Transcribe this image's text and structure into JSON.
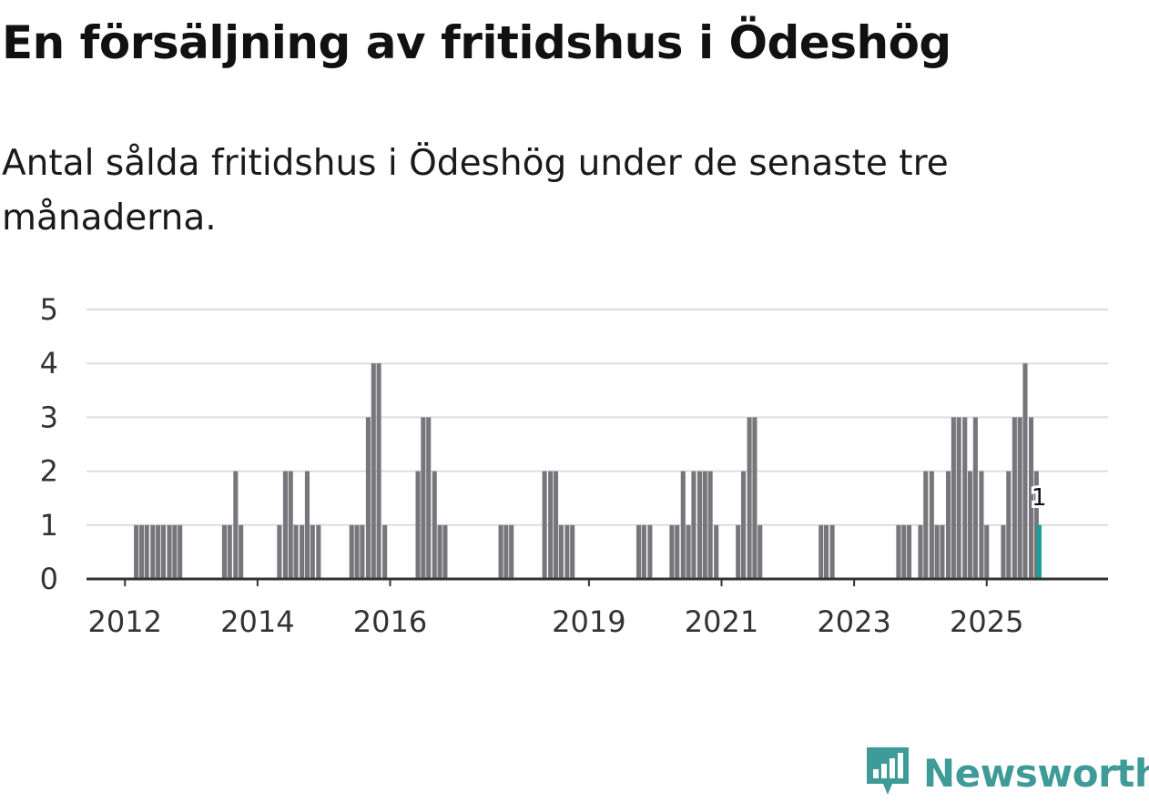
{
  "title": "En försäljning av fritidshus i Ödeshög",
  "subtitle": "Antal sålda fritidshus i Ödeshög under de senaste tre månaderna.",
  "brand": {
    "name": "Newsworthy",
    "icon": "newsworthy-logo-icon",
    "color": "#3e9b98"
  },
  "colors": {
    "bar": "#77767b",
    "highlight": "#12a39b",
    "grid": "#dddddd",
    "axis": "#333333"
  },
  "chart_data": {
    "type": "bar",
    "title": "En försäljning av fritidshus i Ödeshög",
    "subtitle": "Antal sålda fritidshus i Ödeshög under de senaste tre månaderna.",
    "xlabel": "",
    "ylabel": "",
    "ylim": [
      0,
      5
    ],
    "yticks": [
      0,
      1,
      2,
      3,
      4,
      5
    ],
    "xlim": [
      2011.42,
      2026.83
    ],
    "xticks": [
      2012,
      2014,
      2016,
      2019,
      2021,
      2023,
      2025
    ],
    "grid": true,
    "bar_width_years": 0.07,
    "highlight": {
      "x": 2025.79,
      "value": 1,
      "label": "1"
    },
    "x": [
      2012.17,
      2012.25,
      2012.33,
      2012.42,
      2012.5,
      2012.58,
      2012.67,
      2012.75,
      2012.83,
      2013.5,
      2013.58,
      2013.67,
      2013.75,
      2014.33,
      2014.42,
      2014.5,
      2014.58,
      2014.67,
      2014.75,
      2014.83,
      2014.92,
      2015.42,
      2015.5,
      2015.58,
      2015.67,
      2015.75,
      2015.83,
      2015.92,
      2016.42,
      2016.5,
      2016.58,
      2016.67,
      2016.75,
      2016.83,
      2017.67,
      2017.75,
      2017.83,
      2018.33,
      2018.42,
      2018.5,
      2018.58,
      2018.67,
      2018.75,
      2019.75,
      2019.83,
      2019.92,
      2020.25,
      2020.33,
      2020.42,
      2020.5,
      2020.58,
      2020.67,
      2020.75,
      2020.83,
      2020.92,
      2021.25,
      2021.33,
      2021.42,
      2021.5,
      2021.58,
      2022.5,
      2022.58,
      2022.67,
      2023.67,
      2023.75,
      2023.83,
      2024.0,
      2024.08,
      2024.17,
      2024.25,
      2024.33,
      2024.42,
      2024.5,
      2024.58,
      2024.67,
      2024.75,
      2024.83,
      2024.92,
      2025.0,
      2025.25,
      2025.33,
      2025.42,
      2025.5,
      2025.58,
      2025.67,
      2025.75,
      2025.79
    ],
    "values": [
      1,
      1,
      1,
      1,
      1,
      1,
      1,
      1,
      1,
      1,
      1,
      2,
      1,
      1,
      2,
      2,
      1,
      1,
      2,
      1,
      1,
      1,
      1,
      1,
      3,
      4,
      4,
      1,
      2,
      3,
      3,
      2,
      1,
      1,
      1,
      1,
      1,
      2,
      2,
      2,
      1,
      1,
      1,
      1,
      1,
      1,
      1,
      1,
      2,
      1,
      2,
      2,
      2,
      2,
      1,
      1,
      2,
      3,
      3,
      1,
      1,
      1,
      1,
      1,
      1,
      1,
      1,
      2,
      2,
      1,
      1,
      2,
      3,
      3,
      3,
      2,
      3,
      2,
      1,
      1,
      2,
      3,
      3,
      4,
      3,
      2,
      1
    ]
  }
}
